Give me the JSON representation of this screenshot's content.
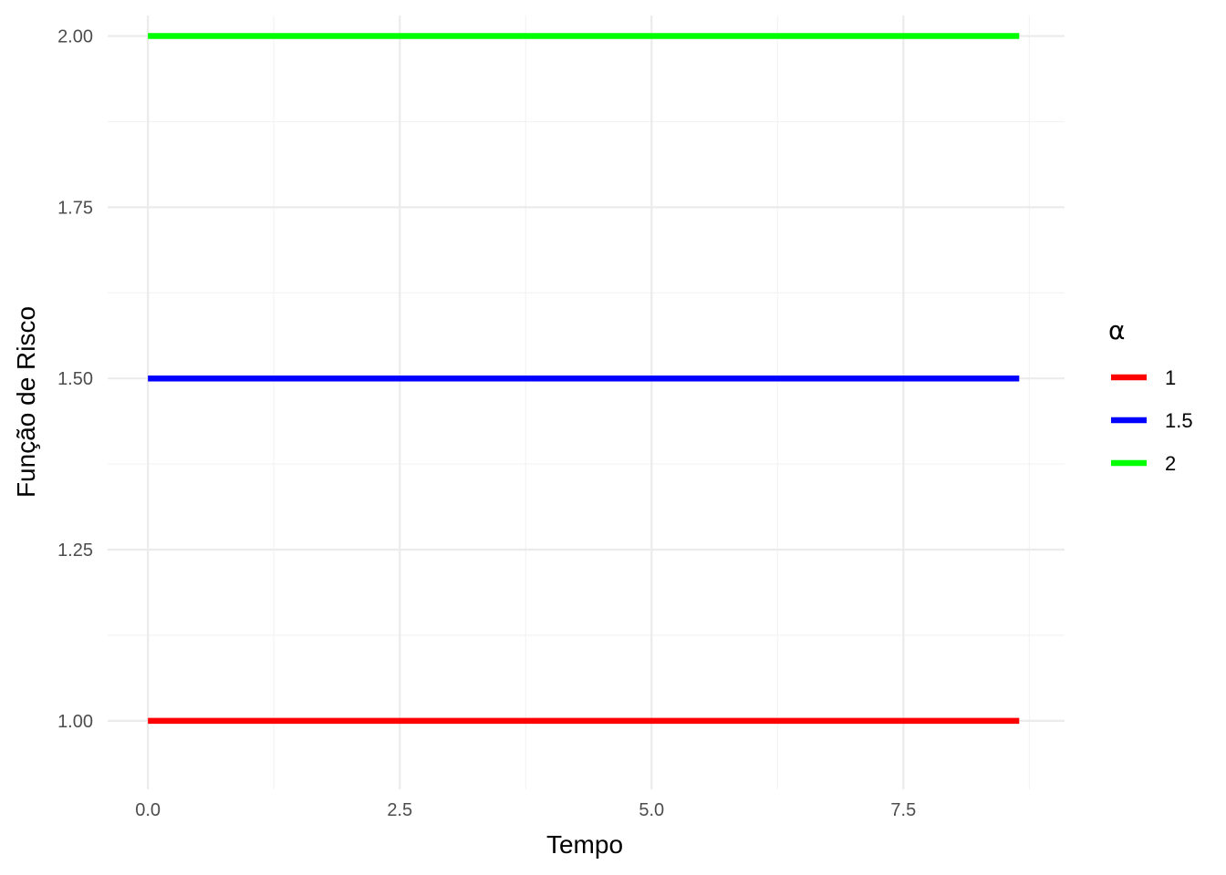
{
  "chart_data": {
    "type": "line",
    "xlabel": "Tempo",
    "ylabel": "Função de Risco",
    "xlim": [
      -0.4,
      9.1
    ],
    "ylim": [
      0.9,
      2.03
    ],
    "x_ticks": [
      0,
      2.5,
      5,
      7.5
    ],
    "x_tick_labels": [
      "0.0",
      "2.5",
      "5.0",
      "7.5"
    ],
    "x_minor_ticks": [
      1.25,
      3.75,
      6.25,
      8.75
    ],
    "y_ticks": [
      1.0,
      1.25,
      1.5,
      1.75,
      2.0
    ],
    "y_tick_labels": [
      "1.00",
      "1.25",
      "1.50",
      "1.75",
      "2.00"
    ],
    "y_minor_ticks": [
      1.125,
      1.375,
      1.625,
      1.875
    ],
    "grid": true,
    "legend": {
      "title": "α",
      "position": "right"
    },
    "series": [
      {
        "name": "1",
        "color": "#ff0000",
        "x": [
          0,
          8.65
        ],
        "y": [
          1.0,
          1.0
        ]
      },
      {
        "name": "1.5",
        "color": "#0000ff",
        "x": [
          0,
          8.65
        ],
        "y": [
          1.5,
          1.5
        ]
      },
      {
        "name": "2",
        "color": "#00ff00",
        "x": [
          0,
          8.65
        ],
        "y": [
          2.0,
          2.0
        ]
      }
    ]
  }
}
